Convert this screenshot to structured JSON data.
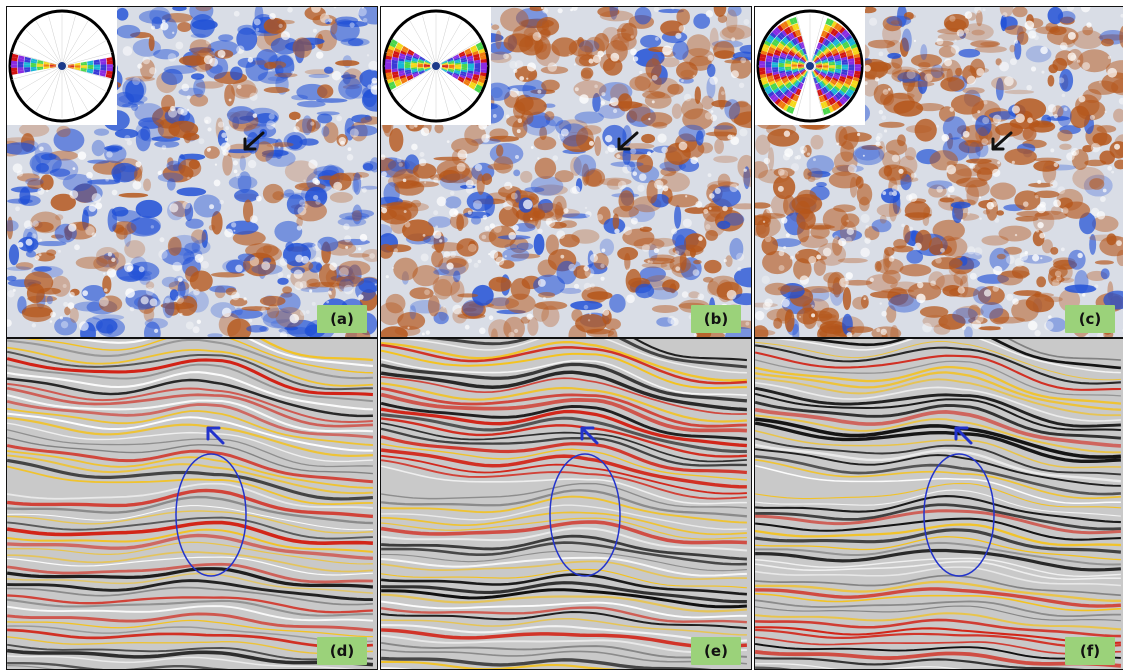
{
  "panels": [
    {
      "id": "a",
      "label": "(a)",
      "kind": "map",
      "rose": "narrow",
      "blue_weight": 0.62
    },
    {
      "id": "b",
      "label": "(b)",
      "kind": "map",
      "rose": "medium",
      "blue_weight": 0.3
    },
    {
      "id": "c",
      "label": "(c)",
      "kind": "map",
      "rose": "wide",
      "blue_weight": 0.22
    },
    {
      "id": "d",
      "label": "(d)",
      "kind": "section"
    },
    {
      "id": "e",
      "label": "(e)",
      "kind": "section"
    },
    {
      "id": "f",
      "label": "(f)",
      "kind": "section"
    }
  ],
  "colors": {
    "map_bg": "#d9dde6",
    "blue": "#1f4fd6",
    "orange": "#b5561a",
    "section_bg": "#c9c9c9",
    "red": "#d21f12",
    "yellow": "#f4c21d",
    "black": "#111111",
    "label_bg": "#9bd27a",
    "marker_black": "#111111",
    "marker_blue": "#2233cc"
  },
  "icons": {
    "map_arrow": "arrow-down-left-icon",
    "section_arrow": "arrow-up-left-icon",
    "ellipse": "ellipse-highlight-icon",
    "rose": "rose-diagram-icon"
  }
}
